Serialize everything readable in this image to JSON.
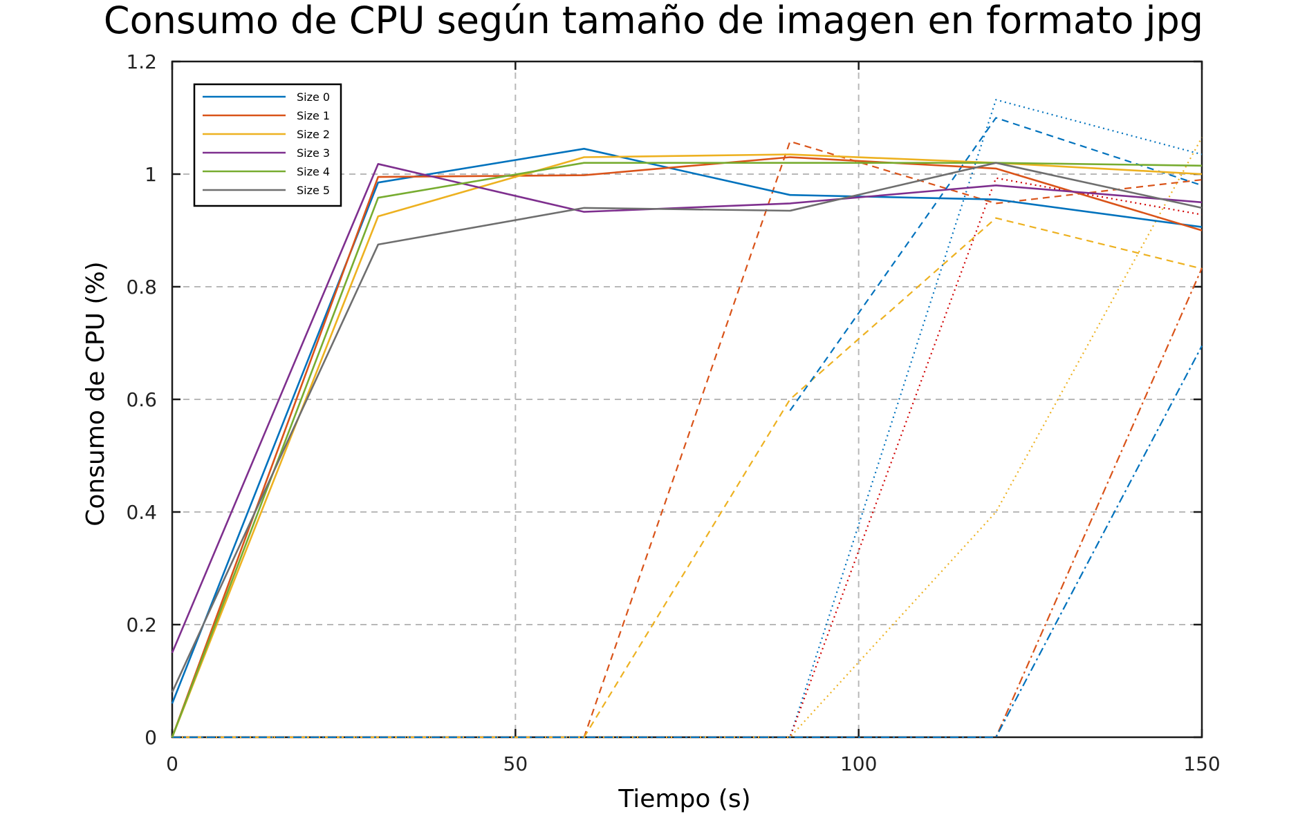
{
  "chart_data": {
    "type": "line",
    "title": "Consumo de CPU según tamaño de imagen en formato jpg",
    "xlabel": "Tiempo (s)",
    "ylabel": "Consumo de CPU (%)",
    "xlim": [
      0,
      150
    ],
    "ylim": [
      0,
      1.2
    ],
    "xticks": [
      0,
      50,
      100,
      150
    ],
    "xtick_labels": [
      "0",
      "50",
      "100",
      "150"
    ],
    "yticks": [
      0,
      0.2,
      0.4,
      0.6,
      0.8,
      1.0,
      1.2
    ],
    "ytick_labels": [
      "0",
      "0.2",
      "0.4",
      "0.6",
      "0.8",
      "1",
      "1.2"
    ],
    "grid": true,
    "legend_position": "top-left",
    "legend": [
      {
        "label": "Size 0",
        "color": "#0072BD"
      },
      {
        "label": "Size 1",
        "color": "#D95319"
      },
      {
        "label": "Size 2",
        "color": "#EDB120"
      },
      {
        "label": "Size 3",
        "color": "#7E2F8E"
      },
      {
        "label": "Size 4",
        "color": "#77AC30"
      },
      {
        "label": "Size 5",
        "color": "#6E6E6E"
      }
    ],
    "series": [
      {
        "name": "Size 0",
        "color": "#0072BD",
        "style": "solid",
        "x": [
          0,
          30,
          60,
          90,
          120,
          150
        ],
        "y": [
          0.06,
          0.985,
          1.045,
          0.963,
          0.955,
          0.906
        ]
      },
      {
        "name": "Size 1",
        "color": "#D95319",
        "style": "solid",
        "x": [
          0,
          30,
          60,
          90,
          120,
          150
        ],
        "y": [
          0.0,
          0.995,
          0.998,
          1.03,
          1.01,
          0.9
        ]
      },
      {
        "name": "Size 2",
        "color": "#EDB120",
        "style": "solid",
        "x": [
          0,
          30,
          60,
          90,
          120,
          150
        ],
        "y": [
          0.0,
          0.925,
          1.03,
          1.035,
          1.02,
          1.0
        ]
      },
      {
        "name": "Size 3",
        "color": "#7E2F8E",
        "style": "solid",
        "x": [
          0,
          30,
          60,
          90,
          120,
          150
        ],
        "y": [
          0.15,
          1.018,
          0.933,
          0.948,
          0.98,
          0.95
        ]
      },
      {
        "name": "Size 4",
        "color": "#77AC30",
        "style": "solid",
        "x": [
          0,
          30,
          60,
          90,
          120,
          150
        ],
        "y": [
          0.0,
          0.958,
          1.02,
          1.02,
          1.02,
          1.015
        ]
      },
      {
        "name": "Size 5",
        "color": "#6E6E6E",
        "style": "solid",
        "x": [
          0,
          30,
          60,
          90,
          120,
          150
        ],
        "y": [
          0.08,
          0.875,
          0.94,
          0.935,
          1.02,
          0.94
        ]
      },
      {
        "color": "#D95319",
        "style": "dashed",
        "x": [
          0,
          60,
          90,
          120,
          150
        ],
        "y": [
          0,
          0,
          1.058,
          0.948,
          0.99
        ]
      },
      {
        "color": "#EDB120",
        "style": "dashed",
        "x": [
          0,
          60,
          90,
          120,
          150
        ],
        "y": [
          0,
          0,
          0.6,
          0.922,
          0.832
        ]
      },
      {
        "color": "#0072BD",
        "style": "dashed",
        "x": [
          90,
          120,
          150
        ],
        "y": [
          0.58,
          1.1,
          0.98
        ]
      },
      {
        "color": "#0072BD",
        "style": "dotted",
        "x": [
          0,
          90,
          120,
          150
        ],
        "y": [
          0,
          0,
          1.132,
          1.035
        ]
      },
      {
        "color": "#D00000",
        "style": "dotted",
        "x": [
          0,
          90,
          120,
          150
        ],
        "y": [
          0,
          0,
          0.993,
          0.928
        ]
      },
      {
        "color": "#EDB120",
        "style": "dotted",
        "x": [
          0,
          90,
          120,
          150
        ],
        "y": [
          0,
          0,
          0.4,
          1.065
        ]
      },
      {
        "color": "#D95319",
        "style": "dashdot",
        "x": [
          0,
          120,
          150
        ],
        "y": [
          0,
          0,
          0.833
        ]
      },
      {
        "color": "#0072BD",
        "style": "dashdot",
        "x": [
          0,
          120,
          150
        ],
        "y": [
          0,
          0,
          0.695
        ]
      }
    ]
  }
}
